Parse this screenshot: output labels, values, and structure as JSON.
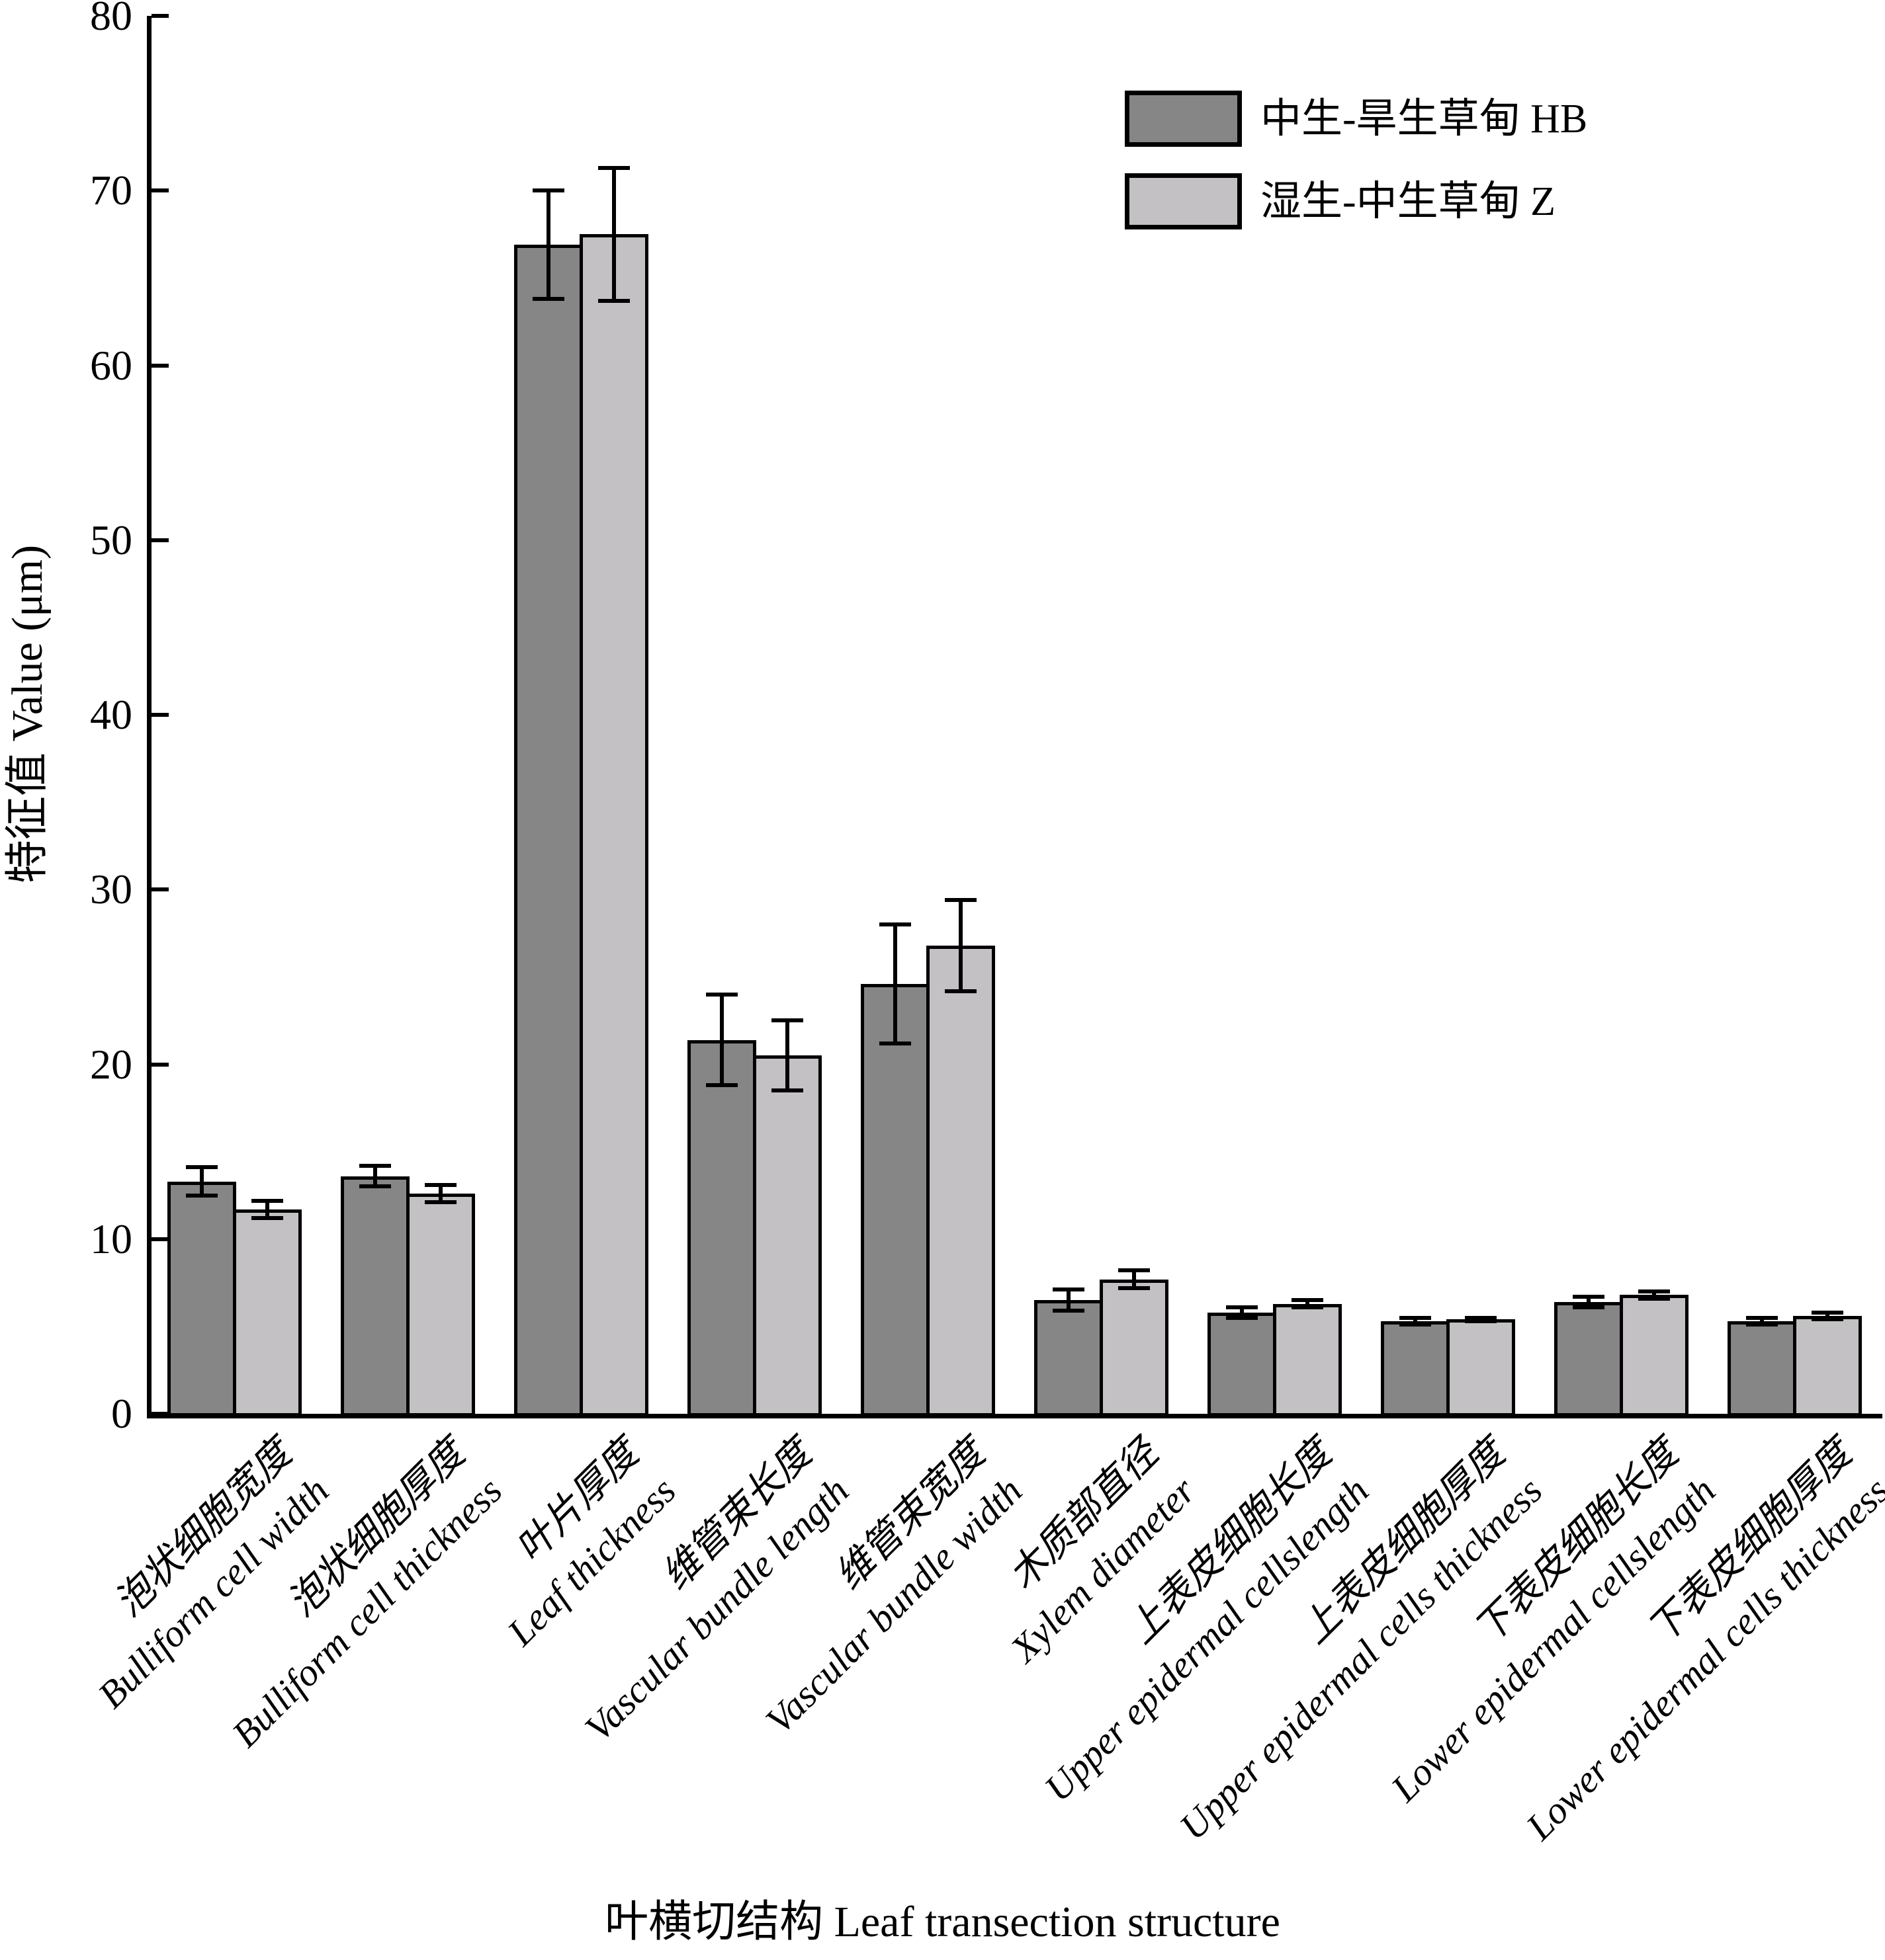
{
  "figure": {
    "y_axis_title": "特征值 Value (μm)",
    "x_axis_title": "叶横切结构 Leaf transection structure"
  },
  "legend": [
    {
      "label": "中生-旱生草甸 HB",
      "color": "#868686"
    },
    {
      "label": "湿生-中生草甸 Z",
      "color": "#c3c1c3"
    }
  ],
  "chart_data": {
    "type": "bar",
    "title": "",
    "xlabel": "叶横切结构 Leaf transection structure",
    "ylabel": "特征值 Value (μm)",
    "ylim": [
      0,
      80
    ],
    "yticks": [
      0,
      10,
      20,
      30,
      40,
      50,
      60,
      70,
      80
    ],
    "grid": false,
    "legend_position": "upper right",
    "error_bars": true,
    "categories": [
      {
        "zh": "泡状细胞宽度",
        "en": "Bulliform cell width"
      },
      {
        "zh": "泡状细胞厚度",
        "en": "Bulliform cell thickness"
      },
      {
        "zh": "叶片厚度",
        "en": "Leaf thickness"
      },
      {
        "zh": "维管束长度",
        "en": "Vascular bundle length"
      },
      {
        "zh": "维管束宽度",
        "en": "Vascular bundle width"
      },
      {
        "zh": "木质部直径",
        "en": "Xylem diameter"
      },
      {
        "zh": "上表皮细胞长度",
        "en": "Upper epidermal cellslength"
      },
      {
        "zh": "上表皮细胞厚度",
        "en": "Upper epidermal cells thickness"
      },
      {
        "zh": "下表皮细胞长度",
        "en": "Lower epidermal cellslength"
      },
      {
        "zh": "下表皮细胞厚度",
        "en": "Lower epidermal cells thickness"
      }
    ],
    "series": [
      {
        "name": "中生-旱生草甸 HB",
        "color": "#868686",
        "values": [
          13.3,
          13.6,
          66.9,
          21.4,
          24.6,
          6.5,
          5.8,
          5.3,
          6.4,
          5.3
        ],
        "errors": [
          0.8,
          0.6,
          3.1,
          2.6,
          3.4,
          0.6,
          0.3,
          0.2,
          0.3,
          0.2
        ]
      },
      {
        "name": "湿生-中生草甸 Z",
        "color": "#c3c1c3",
        "values": [
          11.7,
          12.6,
          67.5,
          20.5,
          26.8,
          7.7,
          6.3,
          5.4,
          6.8,
          5.6
        ],
        "errors": [
          0.5,
          0.5,
          3.8,
          2.0,
          2.6,
          0.5,
          0.2,
          0.1,
          0.2,
          0.2
        ]
      }
    ]
  }
}
